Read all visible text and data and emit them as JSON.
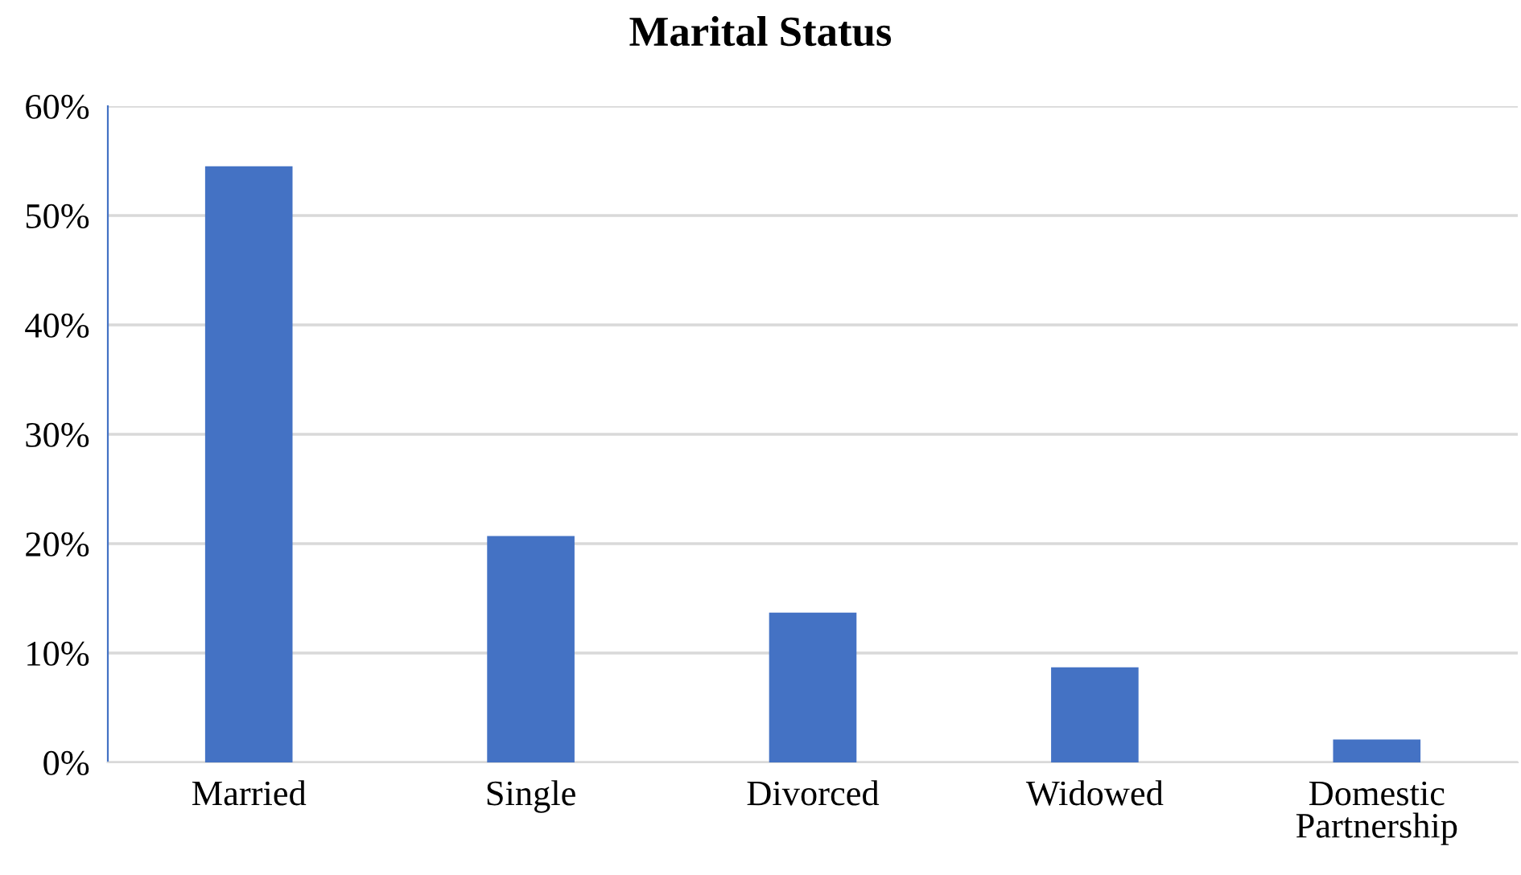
{
  "chart_data": {
    "type": "bar",
    "title": "Marital Status",
    "categories": [
      "Married",
      "Single",
      "Divorced",
      "Widowed",
      "Domestic Partnership"
    ],
    "values": [
      54.5,
      20.7,
      13.7,
      8.7,
      2.1
    ],
    "color": "#4472c4",
    "ylim": [
      0,
      60
    ],
    "yticks": [
      {
        "value": 0,
        "label": "0%"
      },
      {
        "value": 10,
        "label": "10%"
      },
      {
        "value": 20,
        "label": "20%"
      },
      {
        "value": 30,
        "label": "30%"
      },
      {
        "value": 40,
        "label": "40%"
      },
      {
        "value": 50,
        "label": "50%"
      },
      {
        "value": 60,
        "label": "60%"
      }
    ],
    "grid": "y"
  }
}
